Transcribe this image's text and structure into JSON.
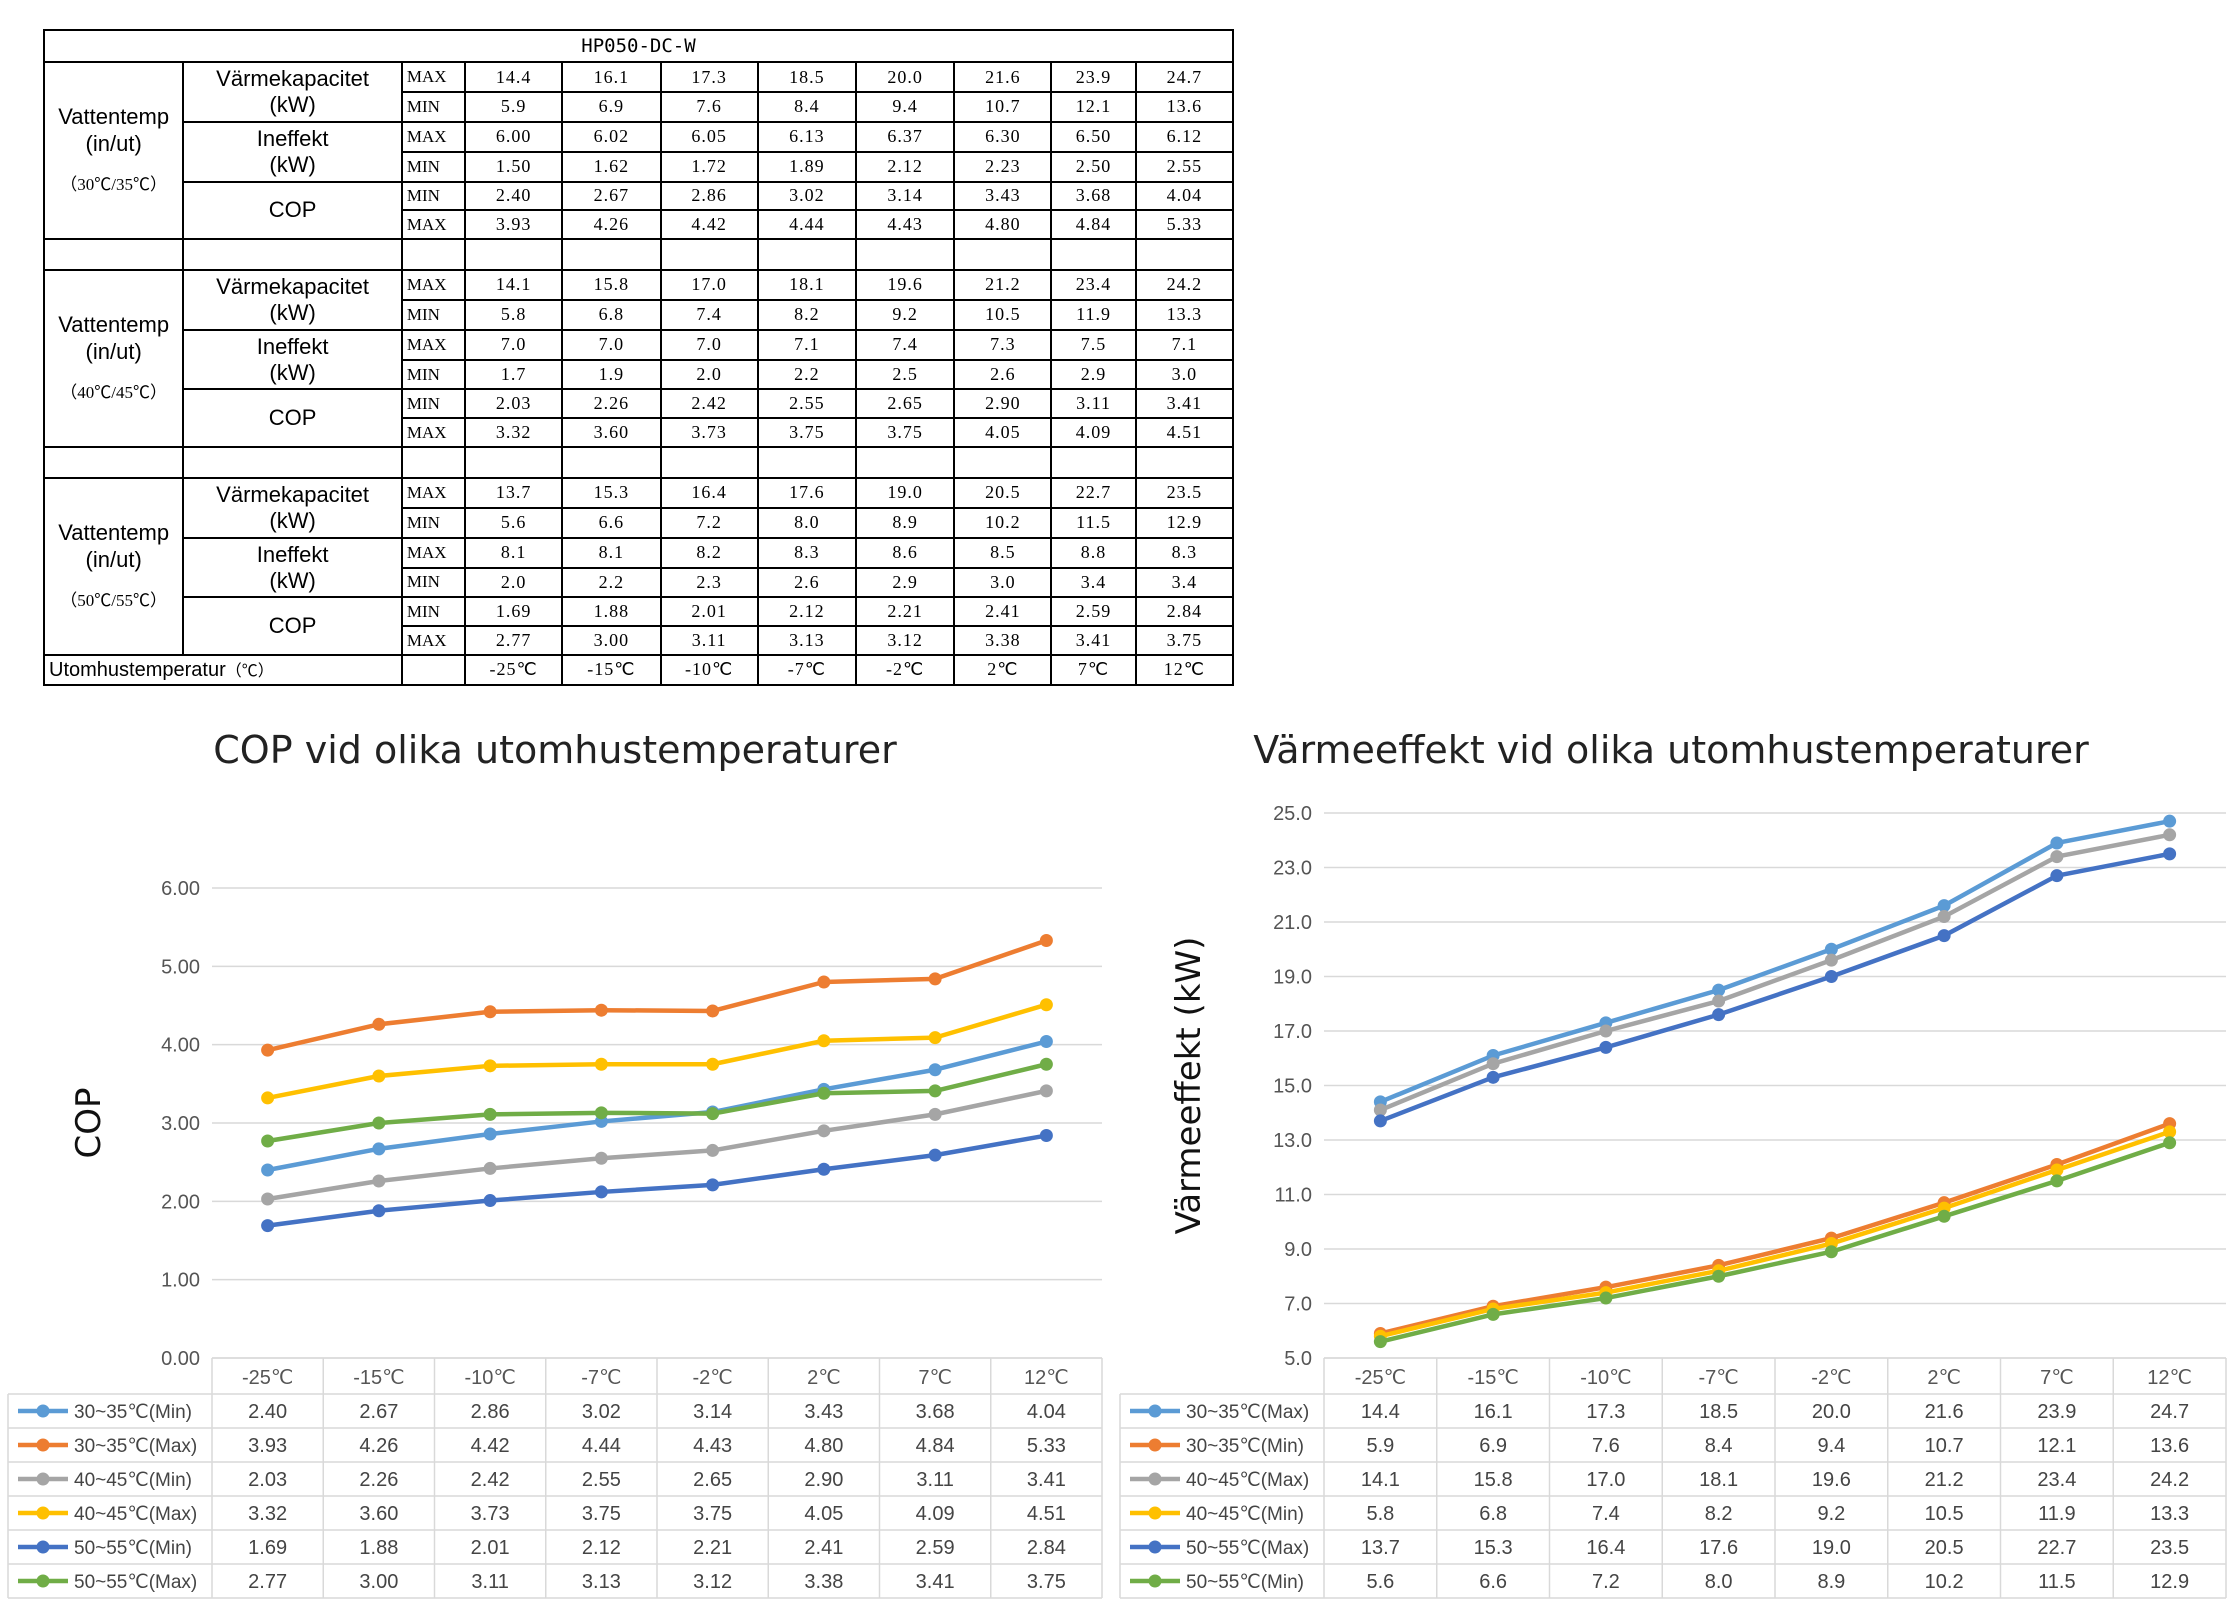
{
  "table": {
    "title": "HP050-DC-W",
    "condition_label": [
      "Vattentemp",
      "(in/ut)"
    ],
    "metric_labels": {
      "capacity": [
        "Värmekapacitet",
        "(kW)"
      ],
      "input": [
        "Ineffekt",
        "(kW)"
      ],
      "cop": "COP"
    },
    "outdoor_label": "Utomhustemperatur",
    "outdoor_unit": "（℃）",
    "outdoor_temps": [
      "-25℃",
      "-15℃",
      "-10℃",
      "-7℃",
      "-2℃",
      "2℃",
      "7℃",
      "12℃"
    ],
    "blocks": [
      {
        "temp": "（30℃/35℃）",
        "rows": [
          {
            "tag": "MAX",
            "values": [
              "14.4",
              "16.1",
              "17.3",
              "18.5",
              "20.0",
              "21.6",
              "23.9",
              "24.7"
            ]
          },
          {
            "tag": "MIN",
            "values": [
              "5.9",
              "6.9",
              "7.6",
              "8.4",
              "9.4",
              "10.7",
              "12.1",
              "13.6"
            ]
          },
          {
            "tag": "MAX",
            "values": [
              "6.00",
              "6.02",
              "6.05",
              "6.13",
              "6.37",
              "6.30",
              "6.50",
              "6.12"
            ]
          },
          {
            "tag": "MIN",
            "values": [
              "1.50",
              "1.62",
              "1.72",
              "1.89",
              "2.12",
              "2.23",
              "2.50",
              "2.55"
            ]
          },
          {
            "tag": "MIN",
            "values": [
              "2.40",
              "2.67",
              "2.86",
              "3.02",
              "3.14",
              "3.43",
              "3.68",
              "4.04"
            ]
          },
          {
            "tag": "MAX",
            "values": [
              "3.93",
              "4.26",
              "4.42",
              "4.44",
              "4.43",
              "4.80",
              "4.84",
              "5.33"
            ]
          }
        ]
      },
      {
        "temp": "（40℃/45℃）",
        "rows": [
          {
            "tag": "MAX",
            "values": [
              "14.1",
              "15.8",
              "17.0",
              "18.1",
              "19.6",
              "21.2",
              "23.4",
              "24.2"
            ]
          },
          {
            "tag": "MIN",
            "values": [
              "5.8",
              "6.8",
              "7.4",
              "8.2",
              "9.2",
              "10.5",
              "11.9",
              "13.3"
            ]
          },
          {
            "tag": "MAX",
            "values": [
              "7.0",
              "7.0",
              "7.0",
              "7.1",
              "7.4",
              "7.3",
              "7.5",
              "7.1"
            ]
          },
          {
            "tag": "MIN",
            "values": [
              "1.7",
              "1.9",
              "2.0",
              "2.2",
              "2.5",
              "2.6",
              "2.9",
              "3.0"
            ]
          },
          {
            "tag": "MIN",
            "values": [
              "2.03",
              "2.26",
              "2.42",
              "2.55",
              "2.65",
              "2.90",
              "3.11",
              "3.41"
            ]
          },
          {
            "tag": "MAX",
            "values": [
              "3.32",
              "3.60",
              "3.73",
              "3.75",
              "3.75",
              "4.05",
              "4.09",
              "4.51"
            ]
          }
        ]
      },
      {
        "temp": "（50℃/55℃）",
        "rows": [
          {
            "tag": "MAX",
            "values": [
              "13.7",
              "15.3",
              "16.4",
              "17.6",
              "19.0",
              "20.5",
              "22.7",
              "23.5"
            ]
          },
          {
            "tag": "MIN",
            "values": [
              "5.6",
              "6.6",
              "7.2",
              "8.0",
              "8.9",
              "10.2",
              "11.5",
              "12.9"
            ]
          },
          {
            "tag": "MAX",
            "values": [
              "8.1",
              "8.1",
              "8.2",
              "8.3",
              "8.6",
              "8.5",
              "8.8",
              "8.3"
            ]
          },
          {
            "tag": "MIN",
            "values": [
              "2.0",
              "2.2",
              "2.3",
              "2.6",
              "2.9",
              "3.0",
              "3.4",
              "3.4"
            ]
          },
          {
            "tag": "MIN",
            "values": [
              "1.69",
              "1.88",
              "2.01",
              "2.12",
              "2.21",
              "2.41",
              "2.59",
              "2.84"
            ]
          },
          {
            "tag": "MAX",
            "values": [
              "2.77",
              "3.00",
              "3.11",
              "3.13",
              "3.12",
              "3.38",
              "3.41",
              "3.75"
            ]
          }
        ]
      }
    ]
  },
  "chart_data": [
    {
      "type": "line",
      "title": "COP vid olika utomhustemperaturer",
      "xlabel": "",
      "ylabel": "COP",
      "ylim": [
        0,
        6
      ],
      "yticks": [
        "0.00",
        "1.00",
        "2.00",
        "3.00",
        "4.00",
        "5.00",
        "6.00"
      ],
      "grid": true,
      "legend": "data-table-below",
      "categories": [
        "-25℃",
        "-15℃",
        "-10℃",
        "-7℃",
        "-2℃",
        "2℃",
        "7℃",
        "12℃"
      ],
      "series": [
        {
          "name": "30~35℃(Min)",
          "color": "#5b9bd5",
          "values": [
            2.4,
            2.67,
            2.86,
            3.02,
            3.14,
            3.43,
            3.68,
            4.04
          ],
          "labels": [
            "2.40",
            "2.67",
            "2.86",
            "3.02",
            "3.14",
            "3.43",
            "3.68",
            "4.04"
          ]
        },
        {
          "name": "30~35℃(Max)",
          "color": "#ed7d31",
          "values": [
            3.93,
            4.26,
            4.42,
            4.44,
            4.43,
            4.8,
            4.84,
            5.33
          ],
          "labels": [
            "3.93",
            "4.26",
            "4.42",
            "4.44",
            "4.43",
            "4.80",
            "4.84",
            "5.33"
          ]
        },
        {
          "name": "40~45℃(Min)",
          "color": "#a5a5a5",
          "values": [
            2.03,
            2.26,
            2.42,
            2.55,
            2.65,
            2.9,
            3.11,
            3.41
          ],
          "labels": [
            "2.03",
            "2.26",
            "2.42",
            "2.55",
            "2.65",
            "2.90",
            "3.11",
            "3.41"
          ]
        },
        {
          "name": "40~45℃(Max)",
          "color": "#ffc000",
          "values": [
            3.32,
            3.6,
            3.73,
            3.75,
            3.75,
            4.05,
            4.09,
            4.51
          ],
          "labels": [
            "3.32",
            "3.60",
            "3.73",
            "3.75",
            "3.75",
            "4.05",
            "4.09",
            "4.51"
          ]
        },
        {
          "name": "50~55℃(Min)",
          "color": "#4472c4",
          "values": [
            1.69,
            1.88,
            2.01,
            2.12,
            2.21,
            2.41,
            2.59,
            2.84
          ],
          "labels": [
            "1.69",
            "1.88",
            "2.01",
            "2.12",
            "2.21",
            "2.41",
            "2.59",
            "2.84"
          ]
        },
        {
          "name": "50~55℃(Max)",
          "color": "#70ad47",
          "values": [
            2.77,
            3.0,
            3.11,
            3.13,
            3.12,
            3.38,
            3.41,
            3.75
          ],
          "labels": [
            "2.77",
            "3.00",
            "3.11",
            "3.13",
            "3.12",
            "3.38",
            "3.41",
            "3.75"
          ]
        }
      ]
    },
    {
      "type": "line",
      "title": "Värmeeffekt vid olika utomhustemperaturer",
      "xlabel": "",
      "ylabel": "Värmeeffekt (kW)",
      "ylim": [
        5,
        25
      ],
      "yticks": [
        "5.0",
        "7.0",
        "9.0",
        "11.0",
        "13.0",
        "15.0",
        "17.0",
        "19.0",
        "21.0",
        "23.0",
        "25.0"
      ],
      "grid": true,
      "legend": "data-table-below",
      "categories": [
        "-25℃",
        "-15℃",
        "-10℃",
        "-7℃",
        "-2℃",
        "2℃",
        "7℃",
        "12℃"
      ],
      "series": [
        {
          "name": "30~35℃(Max)",
          "color": "#5b9bd5",
          "values": [
            14.4,
            16.1,
            17.3,
            18.5,
            20.0,
            21.6,
            23.9,
            24.7
          ],
          "labels": [
            "14.4",
            "16.1",
            "17.3",
            "18.5",
            "20.0",
            "21.6",
            "23.9",
            "24.7"
          ]
        },
        {
          "name": "30~35℃(Min)",
          "color": "#ed7d31",
          "values": [
            5.9,
            6.9,
            7.6,
            8.4,
            9.4,
            10.7,
            12.1,
            13.6
          ],
          "labels": [
            "5.9",
            "6.9",
            "7.6",
            "8.4",
            "9.4",
            "10.7",
            "12.1",
            "13.6"
          ]
        },
        {
          "name": "40~45℃(Max)",
          "color": "#a5a5a5",
          "values": [
            14.1,
            15.8,
            17.0,
            18.1,
            19.6,
            21.2,
            23.4,
            24.2
          ],
          "labels": [
            "14.1",
            "15.8",
            "17.0",
            "18.1",
            "19.6",
            "21.2",
            "23.4",
            "24.2"
          ]
        },
        {
          "name": "40~45℃(Min)",
          "color": "#ffc000",
          "values": [
            5.8,
            6.8,
            7.4,
            8.2,
            9.2,
            10.5,
            11.9,
            13.3
          ],
          "labels": [
            "5.8",
            "6.8",
            "7.4",
            "8.2",
            "9.2",
            "10.5",
            "11.9",
            "13.3"
          ]
        },
        {
          "name": "50~55℃(Max)",
          "color": "#4472c4",
          "values": [
            13.7,
            15.3,
            16.4,
            17.6,
            19.0,
            20.5,
            22.7,
            23.5
          ],
          "labels": [
            "13.7",
            "15.3",
            "16.4",
            "17.6",
            "19.0",
            "20.5",
            "22.7",
            "23.5"
          ]
        },
        {
          "name": "50~55℃(Min)",
          "color": "#70ad47",
          "values": [
            5.6,
            6.6,
            7.2,
            8.0,
            8.9,
            10.2,
            11.5,
            12.9
          ],
          "labels": [
            "5.6",
            "6.6",
            "7.2",
            "8.0",
            "8.9",
            "10.2",
            "11.5",
            "12.9"
          ]
        }
      ]
    }
  ]
}
